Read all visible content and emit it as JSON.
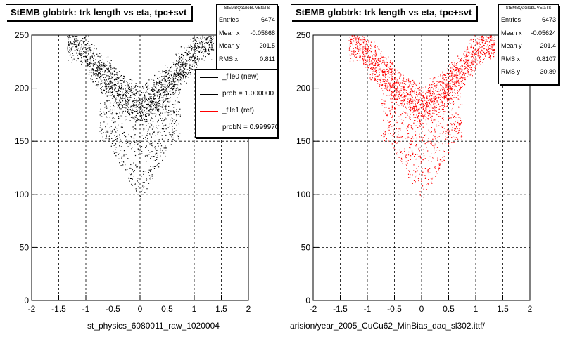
{
  "panels": [
    {
      "title": "StEMB globtrk: trk length vs eta, tpc+svt",
      "stats": {
        "header": "StEMBQaGlobL VEtaTS",
        "rows": [
          {
            "label": "Entries",
            "value": "6474"
          },
          {
            "label": "Mean x",
            "value": "-0.05668"
          },
          {
            "label": "Mean y",
            "value": "201.5"
          },
          {
            "label": "RMS x",
            "value": "0.811"
          }
        ]
      },
      "xcaption": "st_physics_6080011_raw_1020004",
      "color": "#000000"
    },
    {
      "title": "StEMB globtrk: trk length vs eta, tpc+svt",
      "stats": {
        "header": "StEMBQaGlobL VEtaTS",
        "rows": [
          {
            "label": "Entries",
            "value": "6473"
          },
          {
            "label": "Mean x",
            "value": "-0.05624"
          },
          {
            "label": "Mean y",
            "value": "201.4"
          },
          {
            "label": "RMS x",
            "value": "0.8107"
          },
          {
            "label": "RMS y",
            "value": "30.89"
          }
        ]
      },
      "xcaption": "arision/year_2005_CuCu62_MinBias_daq_sl302.ittf/",
      "color": "#ff0000"
    }
  ],
  "legend": {
    "entries": [
      {
        "label": "_file0 (new)",
        "color": "#000000"
      },
      {
        "label": "prob = 1.000000",
        "color": "#000000"
      },
      {
        "label": "_file1 (ref)",
        "color": "#ff0000"
      },
      {
        "label": "probN = 0.999970",
        "color": "#ff0000"
      }
    ]
  },
  "chart_data": [
    {
      "type": "scatter",
      "title": "StEMB globtrk: trk length vs eta, tpc+svt",
      "xlim": [
        -2,
        2
      ],
      "ylim": [
        0,
        250
      ],
      "xticks": [
        "-2",
        "-1.5",
        "-1",
        "-0.5",
        "0",
        "0.5",
        "1",
        "1.5",
        "2"
      ],
      "yticks": [
        "0",
        "50",
        "100",
        "150",
        "200",
        "250"
      ],
      "grid": true,
      "color": "#000000",
      "series": [
        {
          "ridge": [
            [
              -1.15,
              245
            ],
            [
              -0.9,
              225
            ],
            [
              -0.6,
              210
            ],
            [
              -0.3,
              195
            ],
            [
              0,
              183
            ],
            [
              0.3,
              195
            ],
            [
              0.6,
              210
            ],
            [
              0.9,
              228
            ],
            [
              1.15,
              246
            ]
          ],
          "tail": [
            [
              -0.6,
              150
            ],
            [
              -0.3,
              120
            ],
            [
              0,
              95
            ],
            [
              0.3,
              120
            ],
            [
              0.6,
              150
            ]
          ],
          "entries": 6474
        }
      ]
    },
    {
      "type": "scatter",
      "title": "StEMB globtrk: trk length vs eta, tpc+svt",
      "xlim": [
        -2,
        2
      ],
      "ylim": [
        0,
        250
      ],
      "xticks": [
        "-2",
        "-1.5",
        "-1",
        "-0.5",
        "0",
        "0.5",
        "1",
        "1.5",
        "2"
      ],
      "yticks": [
        "0",
        "50",
        "100",
        "150",
        "200",
        "250"
      ],
      "grid": true,
      "color": "#ff0000",
      "series": [
        {
          "ridge": [
            [
              -1.15,
              245
            ],
            [
              -0.9,
              225
            ],
            [
              -0.6,
              210
            ],
            [
              -0.3,
              195
            ],
            [
              0,
              183
            ],
            [
              0.3,
              195
            ],
            [
              0.6,
              210
            ],
            [
              0.9,
              228
            ],
            [
              1.15,
              246
            ]
          ],
          "tail": [
            [
              -0.6,
              150
            ],
            [
              -0.3,
              120
            ],
            [
              0,
              95
            ],
            [
              0.3,
              120
            ],
            [
              0.6,
              150
            ]
          ],
          "entries": 6473
        }
      ]
    }
  ]
}
